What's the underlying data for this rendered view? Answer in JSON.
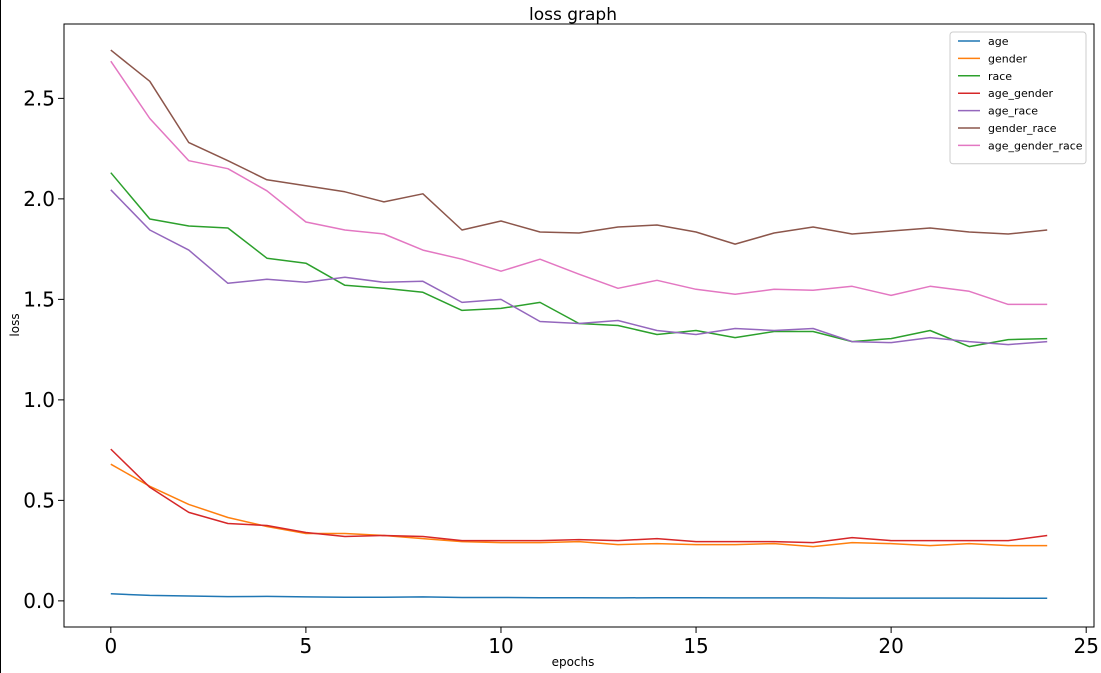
{
  "chart_data": {
    "type": "line",
    "title": "loss graph",
    "xlabel": "epochs",
    "ylabel": "loss",
    "xlim": [
      -1.2,
      25.2
    ],
    "ylim": [
      -0.13,
      2.87
    ],
    "xticks": [
      0,
      5,
      10,
      15,
      20,
      25
    ],
    "xtick_labels": [
      "0",
      "5",
      "10",
      "15",
      "20",
      "25"
    ],
    "yticks": [
      0.0,
      0.5,
      1.0,
      1.5,
      2.0,
      2.5
    ],
    "ytick_labels": [
      "0.0",
      "0.5",
      "1.0",
      "1.5",
      "2.0",
      "2.5"
    ],
    "grid": false,
    "legend_position": "top-right",
    "x": [
      0,
      1,
      2,
      3,
      4,
      5,
      6,
      7,
      8,
      9,
      10,
      11,
      12,
      13,
      14,
      15,
      16,
      17,
      18,
      19,
      20,
      21,
      22,
      23,
      24
    ],
    "series": [
      {
        "name": "age",
        "color": "#1f77b4",
        "values": [
          0.035,
          0.027,
          0.024,
          0.021,
          0.022,
          0.02,
          0.018,
          0.018,
          0.02,
          0.017,
          0.017,
          0.016,
          0.016,
          0.015,
          0.016,
          0.016,
          0.015,
          0.015,
          0.015,
          0.014,
          0.014,
          0.014,
          0.014,
          0.013,
          0.013
        ]
      },
      {
        "name": "gender",
        "color": "#ff7f0e",
        "values": [
          0.68,
          0.57,
          0.48,
          0.415,
          0.37,
          0.335,
          0.335,
          0.325,
          0.31,
          0.295,
          0.29,
          0.29,
          0.295,
          0.28,
          0.285,
          0.28,
          0.28,
          0.285,
          0.27,
          0.29,
          0.285,
          0.275,
          0.285,
          0.275,
          0.275
        ]
      },
      {
        "name": "race",
        "color": "#2ca02c",
        "values": [
          2.13,
          1.9,
          1.865,
          1.855,
          1.705,
          1.68,
          1.57,
          1.555,
          1.535,
          1.445,
          1.455,
          1.485,
          1.38,
          1.37,
          1.325,
          1.345,
          1.31,
          1.34,
          1.34,
          1.29,
          1.305,
          1.345,
          1.265,
          1.3,
          1.305
        ]
      },
      {
        "name": "age_gender",
        "color": "#d62728",
        "values": [
          0.755,
          0.565,
          0.44,
          0.385,
          0.375,
          0.34,
          0.32,
          0.325,
          0.32,
          0.3,
          0.3,
          0.3,
          0.305,
          0.3,
          0.31,
          0.295,
          0.295,
          0.295,
          0.29,
          0.315,
          0.3,
          0.3,
          0.3,
          0.3,
          0.325
        ]
      },
      {
        "name": "age_race",
        "color": "#9467bd",
        "values": [
          2.045,
          1.845,
          1.745,
          1.58,
          1.6,
          1.585,
          1.61,
          1.585,
          1.59,
          1.485,
          1.5,
          1.39,
          1.38,
          1.395,
          1.345,
          1.325,
          1.355,
          1.345,
          1.355,
          1.29,
          1.285,
          1.31,
          1.29,
          1.275,
          1.29
        ]
      },
      {
        "name": "gender_race",
        "color": "#8c564b",
        "values": [
          2.74,
          2.585,
          2.28,
          2.19,
          2.095,
          2.065,
          2.035,
          1.985,
          2.025,
          1.845,
          1.89,
          1.835,
          1.83,
          1.86,
          1.87,
          1.835,
          1.775,
          1.83,
          1.86,
          1.825,
          1.84,
          1.855,
          1.835,
          1.825,
          1.845
        ]
      },
      {
        "name": "age_gender_race",
        "color": "#e377c2",
        "values": [
          2.685,
          2.4,
          2.19,
          2.15,
          2.04,
          1.885,
          1.845,
          1.825,
          1.745,
          1.7,
          1.64,
          1.7,
          1.625,
          1.555,
          1.595,
          1.55,
          1.525,
          1.55,
          1.545,
          1.565,
          1.52,
          1.565,
          1.54,
          1.475,
          1.475
        ]
      }
    ]
  }
}
